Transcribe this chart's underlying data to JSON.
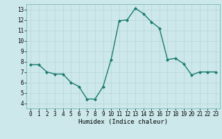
{
  "x": [
    0,
    1,
    2,
    3,
    4,
    5,
    6,
    7,
    8,
    9,
    10,
    11,
    12,
    13,
    14,
    15,
    16,
    17,
    18,
    19,
    20,
    21,
    22,
    23
  ],
  "y": [
    7.7,
    7.7,
    7.0,
    6.8,
    6.8,
    6.0,
    5.6,
    4.4,
    4.4,
    5.6,
    8.2,
    11.9,
    12.0,
    13.1,
    12.6,
    11.8,
    11.2,
    8.2,
    8.3,
    7.8,
    6.7,
    7.0,
    7.0,
    7.0
  ],
  "xlim": [
    -0.5,
    23.5
  ],
  "ylim": [
    3.5,
    13.5
  ],
  "yticks": [
    4,
    5,
    6,
    7,
    8,
    9,
    10,
    11,
    12,
    13
  ],
  "xticks": [
    0,
    1,
    2,
    3,
    4,
    5,
    6,
    7,
    8,
    9,
    10,
    11,
    12,
    13,
    14,
    15,
    16,
    17,
    18,
    19,
    20,
    21,
    22,
    23
  ],
  "xlabel": "Humidex (Indice chaleur)",
  "line_color": "#1a7a6e",
  "marker": "D",
  "marker_size": 2.0,
  "bg_color": "#cce8ea",
  "grid_color_major": "#b8d4d6",
  "grid_color_minor": "#daeaeb",
  "line_width": 1.0,
  "ytick_fontsize": 5.5,
  "xtick_fontsize": 5.5,
  "xlabel_fontsize": 6.5
}
